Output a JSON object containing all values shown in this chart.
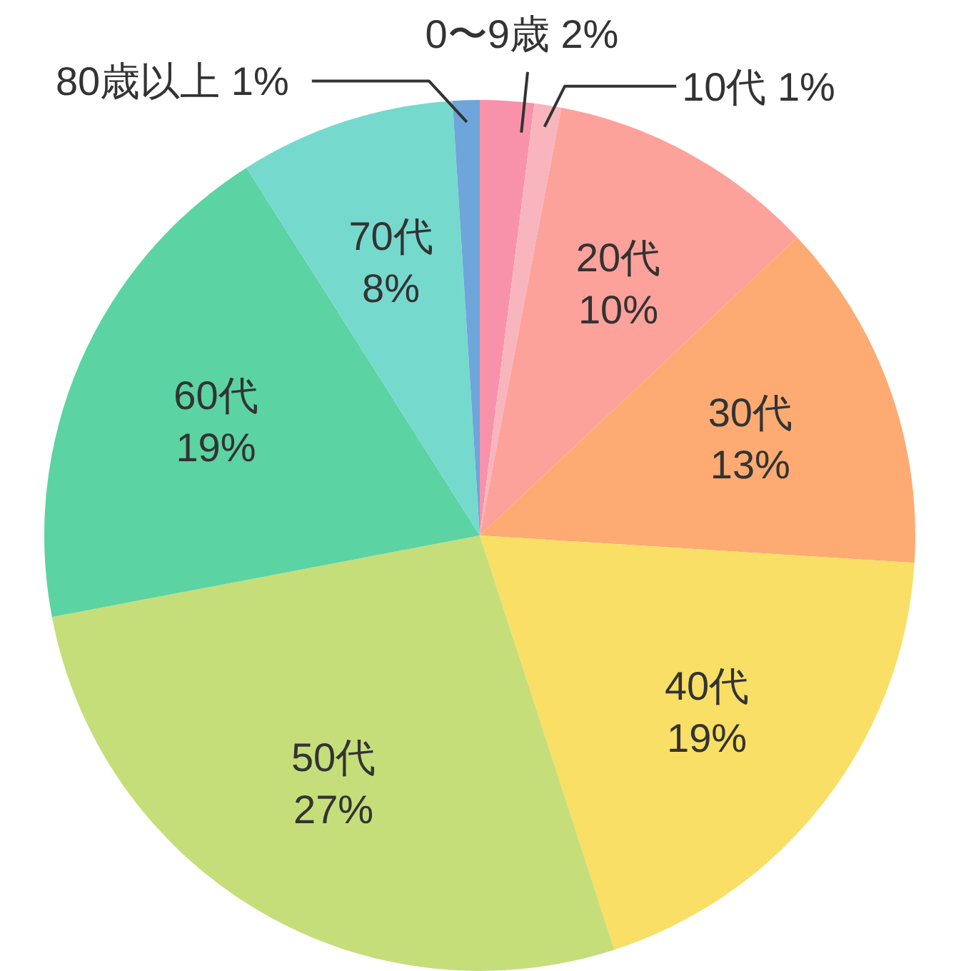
{
  "chart_data": {
    "type": "pie",
    "categories": [
      "0〜9歳",
      "10代",
      "20代",
      "30代",
      "40代",
      "50代",
      "60代",
      "70代",
      "80歳以上"
    ],
    "values": [
      2,
      1,
      10,
      13,
      19,
      27,
      19,
      8,
      1
    ],
    "value_labels": [
      "2%",
      "1%",
      "10%",
      "13%",
      "19%",
      "27%",
      "19%",
      "8%",
      "1%"
    ],
    "colors": [
      "#f892aa",
      "#f9b5bd",
      "#fda19b",
      "#fdab72",
      "#f9df65",
      "#c5de7a",
      "#5bd3a3",
      "#76d9cd",
      "#6ea5da"
    ]
  }
}
